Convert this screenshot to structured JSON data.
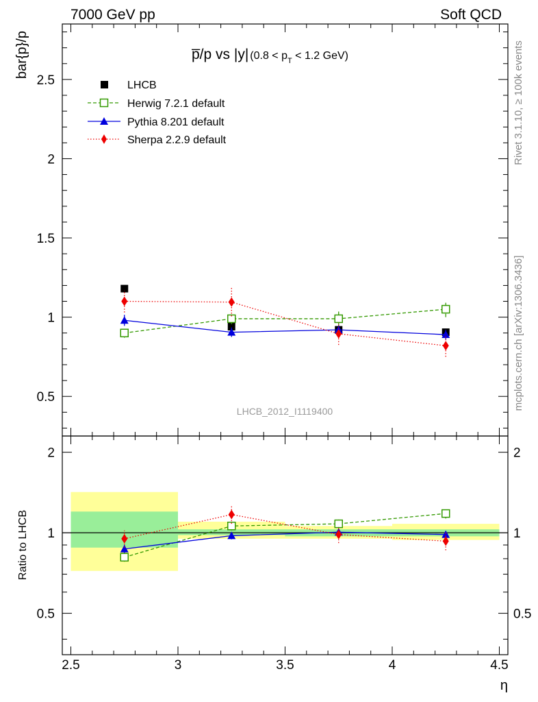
{
  "header": {
    "left": "7000 GeV pp",
    "right": "Soft QCD"
  },
  "side_labels": {
    "rivet": "Rivet 3.1.10, ≥ 100k events",
    "source": "mcplots.cern.ch [arXiv:1306.3436]"
  },
  "chart_data": {
    "type": "scatter",
    "title": {
      "main": "p̅/p vs |y|",
      "cut_prefix": "(0.8 < p",
      "cut_sub": "T",
      "cut_suffix": " < 1.2 GeV)"
    },
    "analysis_id": "LHCB_2012_I1119400",
    "xlabel": "η",
    "ylabel": "bar{p}/p",
    "ratio_ylabel": "Ratio to LHCB",
    "xlim": [
      2.5,
      4.5
    ],
    "ylim": [
      0.25,
      2.85
    ],
    "ratio_ylim": [
      0.35,
      2.3
    ],
    "x_ticks": [
      "2.5",
      "3",
      "3.5",
      "4",
      "4.5"
    ],
    "y_ticks": [
      "0.5",
      "1",
      "1.5",
      "2",
      "2.5"
    ],
    "ratio_y_ticks": [
      "0.5",
      "1",
      "2"
    ],
    "legend_position": "top-left",
    "reference": {
      "name": "LHCB",
      "color": "#000000",
      "x": [
        2.75,
        3.25,
        3.75,
        4.25
      ],
      "xerr": [
        0.25,
        0.25,
        0.25,
        0.25
      ],
      "y": [
        1.18,
        0.94,
        0.92,
        0.905
      ],
      "band_inner": [
        [
          0.88,
          1.2
        ],
        [
          0.98,
          1.03
        ],
        [
          0.97,
          1.03
        ],
        [
          0.97,
          1.03
        ]
      ],
      "band_outer": [
        [
          0.72,
          1.42
        ],
        [
          0.95,
          1.1
        ],
        [
          0.95,
          1.06
        ],
        [
          0.94,
          1.08
        ]
      ],
      "band_colors": {
        "inner": "#99ee99",
        "outer": "#ffff99"
      }
    },
    "series": [
      {
        "name": "Herwig 7.2.1 default",
        "color": "#339900",
        "marker": "open-square",
        "line": "dashed",
        "x": [
          2.75,
          3.25,
          3.75,
          4.25
        ],
        "y": [
          0.9,
          0.99,
          0.99,
          1.05
        ],
        "yerr": [
          0.03,
          0.035,
          0.045,
          0.05
        ],
        "ratio": [
          0.81,
          1.06,
          1.08,
          1.18
        ],
        "ratio_err": [
          0.03,
          0.04,
          0.04,
          0.05
        ]
      },
      {
        "name": "Pythia 8.201 default",
        "color": "#0000dd",
        "marker": "filled-triangle",
        "line": "solid",
        "x": [
          2.75,
          3.25,
          3.75,
          4.25
        ],
        "y": [
          0.98,
          0.905,
          0.92,
          0.89
        ],
        "yerr": [
          0.035,
          0.03,
          0.03,
          0.03
        ],
        "ratio": [
          0.87,
          0.975,
          1.005,
          0.985
        ],
        "ratio_err": [
          0.03,
          0.03,
          0.03,
          0.03
        ]
      },
      {
        "name": "Sherpa 2.2.9 default",
        "color": "#ee0000",
        "marker": "filled-diamond",
        "line": "dotted",
        "x": [
          2.75,
          3.25,
          3.75,
          4.25
        ],
        "y": [
          1.1,
          1.095,
          0.895,
          0.82
        ],
        "yerr": [
          0.07,
          0.09,
          0.07,
          0.07
        ],
        "ratio": [
          0.95,
          1.17,
          0.985,
          0.93
        ],
        "ratio_err": [
          0.07,
          0.09,
          0.07,
          0.07
        ]
      }
    ]
  }
}
